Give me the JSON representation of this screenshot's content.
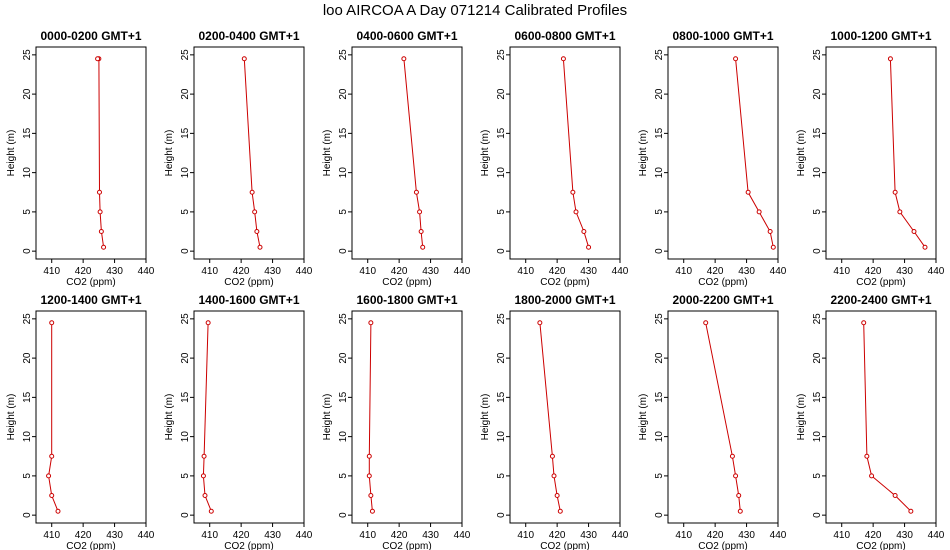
{
  "figure": {
    "title": "loo AIRCOA A  Day 071214  Calibrated Profiles"
  },
  "chart_data": [
    {
      "type": "line",
      "title": "0000-0200 GMT+1",
      "xlabel": "CO2 (ppm)",
      "ylabel": "Height (m)",
      "xlim": [
        405,
        440
      ],
      "ylim": [
        -1,
        26
      ],
      "xticks": [
        410,
        420,
        430,
        440
      ],
      "yticks": [
        0,
        5,
        10,
        15,
        20,
        25
      ],
      "grid": false,
      "color": "#cc0000",
      "x": [
        426.5,
        425.8,
        425.4,
        425.2,
        425.0,
        424.6
      ],
      "y": [
        0.5,
        2.5,
        5,
        7.5,
        24.5,
        24.5
      ]
    },
    {
      "type": "line",
      "title": "0200-0400 GMT+1",
      "xlabel": "CO2 (ppm)",
      "ylabel": "Height (m)",
      "xlim": [
        405,
        440
      ],
      "ylim": [
        -1,
        26
      ],
      "xticks": [
        410,
        420,
        430,
        440
      ],
      "yticks": [
        0,
        5,
        10,
        15,
        20,
        25
      ],
      "grid": false,
      "color": "#cc0000",
      "x": [
        426.0,
        425.0,
        424.3,
        423.5,
        421.0
      ],
      "y": [
        0.5,
        2.5,
        5,
        7.5,
        24.5
      ]
    },
    {
      "type": "line",
      "title": "0400-0600 GMT+1",
      "xlabel": "CO2 (ppm)",
      "ylabel": "Height (m)",
      "xlim": [
        405,
        440
      ],
      "ylim": [
        -1,
        26
      ],
      "xticks": [
        410,
        420,
        430,
        440
      ],
      "yticks": [
        0,
        5,
        10,
        15,
        20,
        25
      ],
      "grid": false,
      "color": "#cc0000",
      "x": [
        427.5,
        427.0,
        426.5,
        425.5,
        421.5
      ],
      "y": [
        0.5,
        2.5,
        5,
        7.5,
        24.5
      ]
    },
    {
      "type": "line",
      "title": "0600-0800 GMT+1",
      "xlabel": "CO2 (ppm)",
      "ylabel": "Height (m)",
      "xlim": [
        405,
        440
      ],
      "ylim": [
        -1,
        26
      ],
      "xticks": [
        410,
        420,
        430,
        440
      ],
      "yticks": [
        0,
        5,
        10,
        15,
        20,
        25
      ],
      "grid": false,
      "color": "#cc0000",
      "x": [
        430.0,
        428.5,
        426.0,
        425.0,
        422.0
      ],
      "y": [
        0.5,
        2.5,
        5,
        7.5,
        24.5
      ]
    },
    {
      "type": "line",
      "title": "0800-1000 GMT+1",
      "xlabel": "CO2 (ppm)",
      "ylabel": "Height (m)",
      "xlim": [
        405,
        440
      ],
      "ylim": [
        -1,
        26
      ],
      "xticks": [
        410,
        420,
        430,
        440
      ],
      "yticks": [
        0,
        5,
        10,
        15,
        20,
        25
      ],
      "grid": false,
      "color": "#cc0000",
      "x": [
        438.5,
        437.5,
        434.0,
        430.5,
        426.5
      ],
      "y": [
        0.5,
        2.5,
        5,
        7.5,
        24.5
      ]
    },
    {
      "type": "line",
      "title": "1000-1200 GMT+1",
      "xlabel": "CO2 (ppm)",
      "ylabel": "Height (m)",
      "xlim": [
        405,
        440
      ],
      "ylim": [
        -1,
        26
      ],
      "xticks": [
        410,
        420,
        430,
        440
      ],
      "yticks": [
        0,
        5,
        10,
        15,
        20,
        25
      ],
      "grid": false,
      "color": "#cc0000",
      "x": [
        436.5,
        433.0,
        428.5,
        427.0,
        425.5
      ],
      "y": [
        0.5,
        2.5,
        5,
        7.5,
        24.5
      ]
    },
    {
      "type": "line",
      "title": "1200-1400 GMT+1",
      "xlabel": "CO2 (ppm)",
      "ylabel": "Height (m)",
      "xlim": [
        405,
        440
      ],
      "ylim": [
        -1,
        26
      ],
      "xticks": [
        410,
        420,
        430,
        440
      ],
      "yticks": [
        0,
        5,
        10,
        15,
        20,
        25
      ],
      "grid": false,
      "color": "#cc0000",
      "x": [
        412.0,
        410.0,
        409.0,
        410.0,
        410.0
      ],
      "y": [
        0.5,
        2.5,
        5,
        7.5,
        24.5
      ]
    },
    {
      "type": "line",
      "title": "1400-1600 GMT+1",
      "xlabel": "CO2 (ppm)",
      "ylabel": "Height (m)",
      "xlim": [
        405,
        440
      ],
      "ylim": [
        -1,
        26
      ],
      "xticks": [
        410,
        420,
        430,
        440
      ],
      "yticks": [
        0,
        5,
        10,
        15,
        20,
        25
      ],
      "grid": false,
      "color": "#cc0000",
      "x": [
        410.5,
        408.5,
        408.0,
        408.2,
        409.5
      ],
      "y": [
        0.5,
        2.5,
        5,
        7.5,
        24.5
      ]
    },
    {
      "type": "line",
      "title": "1600-1800 GMT+1",
      "xlabel": "CO2 (ppm)",
      "ylabel": "Height (m)",
      "xlim": [
        405,
        440
      ],
      "ylim": [
        -1,
        26
      ],
      "xticks": [
        410,
        420,
        430,
        440
      ],
      "yticks": [
        0,
        5,
        10,
        15,
        20,
        25
      ],
      "grid": false,
      "color": "#cc0000",
      "x": [
        411.5,
        411.0,
        410.5,
        410.5,
        411.0
      ],
      "y": [
        0.5,
        2.5,
        5,
        7.5,
        24.5
      ]
    },
    {
      "type": "line",
      "title": "1800-2000 GMT+1",
      "xlabel": "CO2 (ppm)",
      "ylabel": "Height (m)",
      "xlim": [
        405,
        440
      ],
      "ylim": [
        -1,
        26
      ],
      "xticks": [
        410,
        420,
        430,
        440
      ],
      "yticks": [
        0,
        5,
        10,
        15,
        20,
        25
      ],
      "grid": false,
      "color": "#cc0000",
      "x": [
        421.0,
        420.0,
        419.0,
        418.5,
        414.5
      ],
      "y": [
        0.5,
        2.5,
        5,
        7.5,
        24.5
      ]
    },
    {
      "type": "line",
      "title": "2000-2200 GMT+1",
      "xlabel": "CO2 (ppm)",
      "ylabel": "Height (m)",
      "xlim": [
        405,
        440
      ],
      "ylim": [
        -1,
        26
      ],
      "xticks": [
        410,
        420,
        430,
        440
      ],
      "yticks": [
        0,
        5,
        10,
        15,
        20,
        25
      ],
      "grid": false,
      "color": "#cc0000",
      "x": [
        428.0,
        427.5,
        426.5,
        425.5,
        417.0
      ],
      "y": [
        0.5,
        2.5,
        5,
        7.5,
        24.5
      ]
    },
    {
      "type": "line",
      "title": "2200-2400 GMT+1",
      "xlabel": "CO2 (ppm)",
      "ylabel": "Height (m)",
      "xlim": [
        405,
        440
      ],
      "ylim": [
        -1,
        26
      ],
      "xticks": [
        410,
        420,
        430,
        440
      ],
      "yticks": [
        0,
        5,
        10,
        15,
        20,
        25
      ],
      "grid": false,
      "color": "#cc0000",
      "x": [
        432.0,
        427.0,
        419.5,
        418.0,
        417.0
      ],
      "y": [
        0.5,
        2.5,
        5,
        7.5,
        24.5
      ]
    }
  ]
}
